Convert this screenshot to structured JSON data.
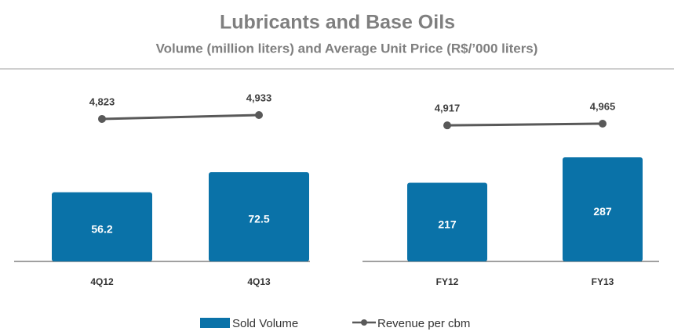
{
  "header": {
    "title": "Lubricants and Base Oils",
    "subtitle": "Volume (million liters) and Average Unit Price (R$/’000 liters)"
  },
  "chart_data": [
    {
      "type": "combo",
      "categories": [
        "4Q12",
        "4Q13"
      ],
      "series": [
        {
          "name": "Sold Volume",
          "type": "bar",
          "color": "#0a72a8",
          "values": [
            56.2,
            72.5
          ]
        },
        {
          "name": "Revenue per cbm",
          "type": "line",
          "color": "#595959",
          "values": [
            4823,
            4933
          ],
          "value_labels": [
            "4,823",
            "4,933"
          ]
        }
      ]
    },
    {
      "type": "combo",
      "categories": [
        "FY12",
        "FY13"
      ],
      "series": [
        {
          "type": "bar",
          "color": "#0a72a8",
          "values": [
            217,
            287
          ]
        },
        {
          "type": "line",
          "color": "#595959",
          "values": [
            4917,
            4965
          ],
          "value_labels": [
            "4,917",
            "4,965"
          ]
        }
      ]
    }
  ]
}
